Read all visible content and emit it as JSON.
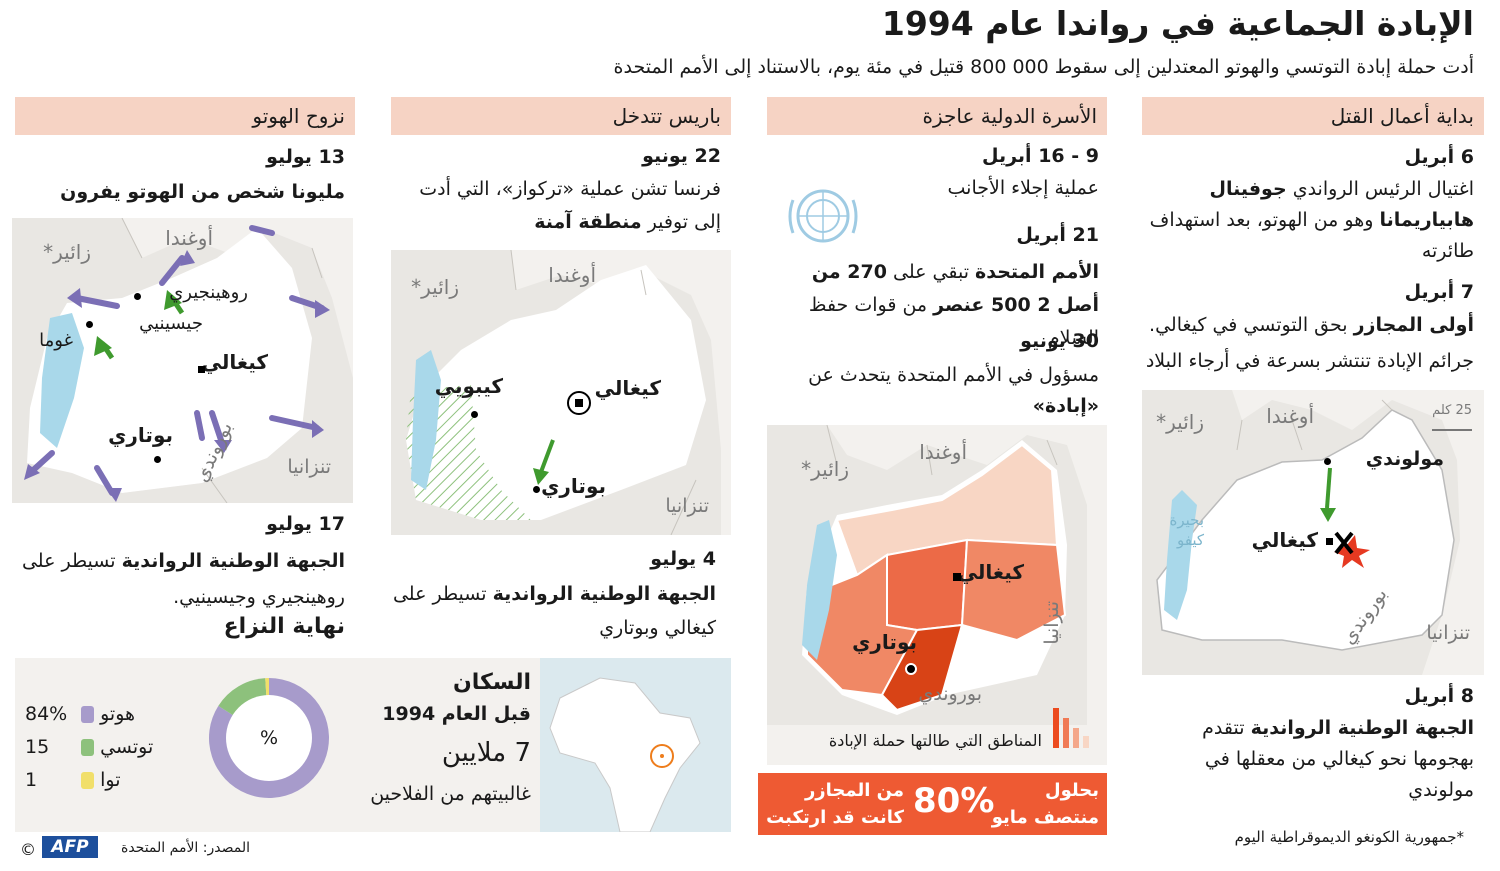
{
  "header": {
    "title": "الإبادة الجماعية في رواندا عام 1994",
    "subtitle": "أدت حملة إبادة التوتسي والهوتو المعتدلين إلى سقوط 000 800 قتيل في مئة يوم، بالاستناد إلى الأمم المتحدة"
  },
  "col1": {
    "heading": "بداية أعمال القتل",
    "d1": "6 أبريل",
    "t1a": "اغتيال الرئيس الرواندي ",
    "t1b": "جوفينال هابياريمانا",
    "t1c": " وهو من الهوتو، بعد استهداف طائرته",
    "d2": "7 أبريل",
    "t2a": "أولى المجازر",
    "t2b": " بحق التوتسي في كيغالي.",
    "t2c": "جرائم الإبادة تنتشر بسرعة في أرجاء البلاد",
    "map": {
      "zaire": "زائير*",
      "uganda": "أوغندا",
      "scale": "25 كلم",
      "mulundi": "مولوندي",
      "lake": "بحيرة كيفو",
      "kigali": "كيغالي",
      "burundi": "بوروندي",
      "tanzania": "تنزانيا"
    },
    "d3": "8 أبريل",
    "t3a": "الجبهة الوطنية الرواندية",
    "t3b": " تتقدم بهجومها نحو كيغالي من معقلها في مولوندي",
    "footnote": "*جمهورية الكونغو الديموقراطية اليوم"
  },
  "col2": {
    "heading": "الأسرة الدولية عاجزة",
    "d1": "9 - 16 أبريل",
    "t1": "عملية إجلاء الأجانب",
    "d2": "21 أبريل",
    "t2a": "الأمم المتحدة",
    "t2b": " تبقي على ",
    "t2c": "270 من أصل 2 500 عنصر",
    "t2d": " من قوات حفظ السلام",
    "d3": "30 يونيو",
    "t3a": "مسؤول في الأمم المتحدة يتحدث عن ",
    "t3b": "«إبادة»",
    "map": {
      "zaire": "زائير*",
      "uganda": "أوغندا",
      "kigali": "كيغالي",
      "butare": "بوتاري",
      "burundi": "بوروندي",
      "tanzania": "تنزانيا"
    },
    "legend": "المناطق التي طالتها حملة الإبادة",
    "banner_a": "بحلول منتصف مايو",
    "banner_pct": "80%",
    "banner_b": "من المجازر كانت قد ارتكبت"
  },
  "col3": {
    "heading": "باريس تتدخل",
    "d1": "22 يونيو",
    "t1a": "فرنسا تشن عملية «تركواز»، التي أدت إلى توفير ",
    "t1b": "منطقة آمنة",
    "map": {
      "zaire": "زائير*",
      "uganda": "أوغندا",
      "kibuye": "كيبويي",
      "kigali": "كيغالي",
      "butare": "بوتاري",
      "tanzania": "تنزانيا"
    },
    "d2": "4 يوليو",
    "t2a": "الجبهة الوطنية الرواندية",
    "t2b": " تسيطر على كيغالي وبوتاري"
  },
  "col4": {
    "heading": "نزوح الهوتو",
    "d1": "13 يوليو",
    "t1": "مليونا شخص من الهوتو يفرون",
    "map": {
      "zaire": "زائير*",
      "uganda": "أوغندا",
      "ruhengeri": "روهينجيري",
      "gisenyi": "جيسينيي",
      "goma": "غوما",
      "kigali": "كيغالي",
      "butare": "بوتاري",
      "burundi": "بوروندي",
      "tanzania": "تنزانيا"
    },
    "d2": "17 يوليو",
    "t2a": "الجبهة الوطنية الرواندية",
    "t2b": " تسيطر على روهينجيري وجيسينيي.",
    "t2c": "نهاية النزاع"
  },
  "population": {
    "title": "السكان",
    "subtitle": "قبل العام 1994",
    "count": "7 ملايين",
    "note": "غالبيتهم من الفلاحين",
    "pct_symbol": "%",
    "groups": [
      {
        "name": "هوتو",
        "value": "84%",
        "color": "#a79bcb",
        "share": 84
      },
      {
        "name": "توتسي",
        "value": "15",
        "color": "#8dc17c",
        "share": 15
      },
      {
        "name": "توا",
        "value": "1",
        "color": "#f1df6a",
        "share": 1
      }
    ]
  },
  "source": "المصدر: الأمم المتحدة",
  "logo": "AFP",
  "copyright": "©",
  "colors": {
    "heading_bg": "#f6d3c4",
    "banner": "#ee5a33",
    "lake": "#a9d8ea",
    "arrow_green": "#3f9a2e",
    "arrow_purple": "#7b6fb5"
  }
}
